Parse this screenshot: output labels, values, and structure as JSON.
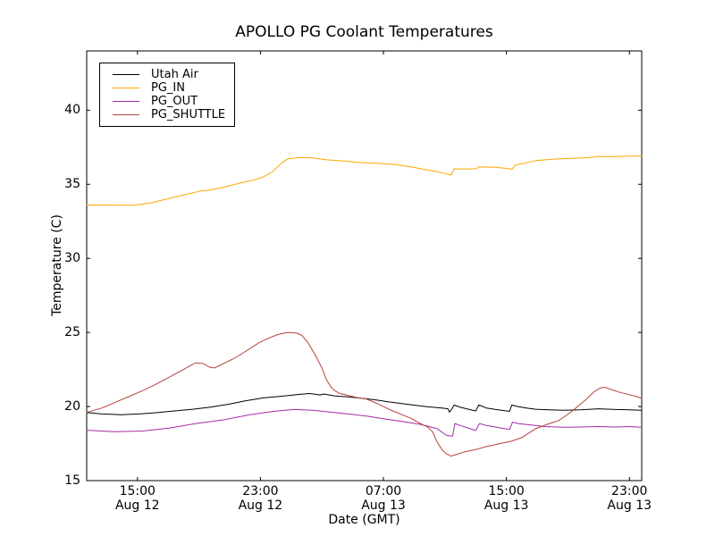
{
  "chart_data": {
    "type": "line",
    "title": "APOLLO PG Coolant Temperatures",
    "xlabel": "Date (GMT)",
    "ylabel": "Temperature (C)",
    "x_unit": "hours since Aug 12 00:00 GMT",
    "xlim": [
      11.7,
      47.8
    ],
    "ylim": [
      15,
      44
    ],
    "grid": false,
    "legend_position": "upper left",
    "yticks": [
      15,
      20,
      25,
      30,
      35,
      40
    ],
    "xticks": [
      {
        "t": 15,
        "time": "15:00",
        "date": "Aug 12"
      },
      {
        "t": 23,
        "time": "23:00",
        "date": "Aug 12"
      },
      {
        "t": 31,
        "time": "07:00",
        "date": "Aug 13"
      },
      {
        "t": 39,
        "time": "15:00",
        "date": "Aug 13"
      },
      {
        "t": 47,
        "time": "23:00",
        "date": "Aug 13"
      }
    ],
    "series": [
      {
        "name": "Utah Air",
        "color": "#000000",
        "points": [
          [
            11.7,
            19.6
          ],
          [
            12.7,
            19.5
          ],
          [
            13.9,
            19.45
          ],
          [
            15.1,
            19.5
          ],
          [
            16.2,
            19.58
          ],
          [
            17.4,
            19.7
          ],
          [
            18.6,
            19.82
          ],
          [
            19.7,
            19.95
          ],
          [
            20.9,
            20.15
          ],
          [
            22.0,
            20.38
          ],
          [
            23.2,
            20.58
          ],
          [
            24.4,
            20.7
          ],
          [
            25.5,
            20.82
          ],
          [
            26.2,
            20.88
          ],
          [
            26.9,
            20.78
          ],
          [
            27.1,
            20.85
          ],
          [
            27.8,
            20.72
          ],
          [
            28.7,
            20.65
          ],
          [
            29.6,
            20.55
          ],
          [
            30.5,
            20.45
          ],
          [
            31.3,
            20.32
          ],
          [
            32.2,
            20.2
          ],
          [
            33.1,
            20.08
          ],
          [
            33.9,
            19.98
          ],
          [
            34.8,
            19.9
          ],
          [
            35.2,
            19.85
          ],
          [
            35.3,
            19.62
          ],
          [
            35.45,
            19.85
          ],
          [
            35.6,
            20.1
          ],
          [
            36.0,
            19.95
          ],
          [
            36.6,
            19.8
          ],
          [
            37.0,
            19.7
          ],
          [
            37.2,
            20.1
          ],
          [
            37.7,
            19.9
          ],
          [
            38.3,
            19.8
          ],
          [
            38.9,
            19.72
          ],
          [
            39.2,
            19.68
          ],
          [
            39.35,
            20.1
          ],
          [
            39.75,
            20.0
          ],
          [
            40.3,
            19.9
          ],
          [
            40.9,
            19.82
          ],
          [
            41.8,
            19.78
          ],
          [
            42.7,
            19.75
          ],
          [
            43.8,
            19.78
          ],
          [
            45.0,
            19.85
          ],
          [
            46.1,
            19.8
          ],
          [
            47.0,
            19.78
          ],
          [
            47.8,
            19.75
          ]
        ]
      },
      {
        "name": "PG_IN",
        "color": "#ffa500",
        "points": [
          [
            11.7,
            33.6
          ],
          [
            14.8,
            33.58
          ],
          [
            15.9,
            33.75
          ],
          [
            17.7,
            34.2
          ],
          [
            18.6,
            34.42
          ],
          [
            19.1,
            34.55
          ],
          [
            19.7,
            34.6
          ],
          [
            20.6,
            34.8
          ],
          [
            21.0,
            34.9
          ],
          [
            21.7,
            35.08
          ],
          [
            22.6,
            35.3
          ],
          [
            23.2,
            35.5
          ],
          [
            23.8,
            35.85
          ],
          [
            24.4,
            36.45
          ],
          [
            24.8,
            36.72
          ],
          [
            25.5,
            36.8
          ],
          [
            26.4,
            36.78
          ],
          [
            27.3,
            36.65
          ],
          [
            28.1,
            36.6
          ],
          [
            29.3,
            36.48
          ],
          [
            30.5,
            36.42
          ],
          [
            31.6,
            36.35
          ],
          [
            32.8,
            36.18
          ],
          [
            33.7,
            36.0
          ],
          [
            34.5,
            35.85
          ],
          [
            35.1,
            35.7
          ],
          [
            35.4,
            35.62
          ],
          [
            35.6,
            36.05
          ],
          [
            36.3,
            36.03
          ],
          [
            37.05,
            36.05
          ],
          [
            37.2,
            36.18
          ],
          [
            38.3,
            36.15
          ],
          [
            39.2,
            36.05
          ],
          [
            39.35,
            36.0
          ],
          [
            39.6,
            36.3
          ],
          [
            40.3,
            36.45
          ],
          [
            40.9,
            36.6
          ],
          [
            42.1,
            36.7
          ],
          [
            43.2,
            36.75
          ],
          [
            44.4,
            36.8
          ],
          [
            45.0,
            36.88
          ],
          [
            46.1,
            36.87
          ],
          [
            47.0,
            36.9
          ],
          [
            47.8,
            36.9
          ]
        ]
      },
      {
        "name": "PG_OUT",
        "color": "#a62ca6",
        "points": [
          [
            11.7,
            18.4
          ],
          [
            13.6,
            18.3
          ],
          [
            15.4,
            18.35
          ],
          [
            17.1,
            18.55
          ],
          [
            18.8,
            18.85
          ],
          [
            20.6,
            19.1
          ],
          [
            22.3,
            19.45
          ],
          [
            23.9,
            19.68
          ],
          [
            25.2,
            19.8
          ],
          [
            26.4,
            19.75
          ],
          [
            27.6,
            19.62
          ],
          [
            28.7,
            19.5
          ],
          [
            29.9,
            19.35
          ],
          [
            31.0,
            19.18
          ],
          [
            32.2,
            19.0
          ],
          [
            33.4,
            18.8
          ],
          [
            34.5,
            18.5
          ],
          [
            34.9,
            18.2
          ],
          [
            35.1,
            18.05
          ],
          [
            35.5,
            18.0
          ],
          [
            35.65,
            18.85
          ],
          [
            36.0,
            18.72
          ],
          [
            36.6,
            18.52
          ],
          [
            37.0,
            18.38
          ],
          [
            37.25,
            18.85
          ],
          [
            37.7,
            18.72
          ],
          [
            38.3,
            18.62
          ],
          [
            38.9,
            18.5
          ],
          [
            39.2,
            18.45
          ],
          [
            39.4,
            18.95
          ],
          [
            39.75,
            18.85
          ],
          [
            40.6,
            18.75
          ],
          [
            41.5,
            18.65
          ],
          [
            42.7,
            18.6
          ],
          [
            43.8,
            18.62
          ],
          [
            45.0,
            18.65
          ],
          [
            46.1,
            18.62
          ],
          [
            47.0,
            18.65
          ],
          [
            47.8,
            18.6
          ]
        ]
      },
      {
        "name": "PG_SHUTTLE",
        "color": "#b5423c",
        "points": [
          [
            11.7,
            19.6
          ],
          [
            12.7,
            19.9
          ],
          [
            13.6,
            20.3
          ],
          [
            14.5,
            20.7
          ],
          [
            15.4,
            21.1
          ],
          [
            16.2,
            21.5
          ],
          [
            17.1,
            22.0
          ],
          [
            18.0,
            22.5
          ],
          [
            18.6,
            22.85
          ],
          [
            18.8,
            22.95
          ],
          [
            19.3,
            22.9
          ],
          [
            19.7,
            22.65
          ],
          [
            20.0,
            22.6
          ],
          [
            20.6,
            22.9
          ],
          [
            21.2,
            23.2
          ],
          [
            21.7,
            23.5
          ],
          [
            22.3,
            23.9
          ],
          [
            22.9,
            24.3
          ],
          [
            23.5,
            24.6
          ],
          [
            24.1,
            24.85
          ],
          [
            24.5,
            24.95
          ],
          [
            24.9,
            25.0
          ],
          [
            25.4,
            24.95
          ],
          [
            25.7,
            24.8
          ],
          [
            26.1,
            24.3
          ],
          [
            26.5,
            23.6
          ],
          [
            27.0,
            22.6
          ],
          [
            27.3,
            21.8
          ],
          [
            27.6,
            21.3
          ],
          [
            27.8,
            21.1
          ],
          [
            28.1,
            20.9
          ],
          [
            28.7,
            20.75
          ],
          [
            29.3,
            20.6
          ],
          [
            29.9,
            20.5
          ],
          [
            30.5,
            20.25
          ],
          [
            31.0,
            20.0
          ],
          [
            31.6,
            19.7
          ],
          [
            32.2,
            19.45
          ],
          [
            32.8,
            19.2
          ],
          [
            33.4,
            18.85
          ],
          [
            33.9,
            18.6
          ],
          [
            34.2,
            18.3
          ],
          [
            34.5,
            17.6
          ],
          [
            34.8,
            17.1
          ],
          [
            35.1,
            16.8
          ],
          [
            35.4,
            16.65
          ],
          [
            35.7,
            16.75
          ],
          [
            36.3,
            16.95
          ],
          [
            37.0,
            17.1
          ],
          [
            37.7,
            17.3
          ],
          [
            38.6,
            17.5
          ],
          [
            39.3,
            17.65
          ],
          [
            40.0,
            17.9
          ],
          [
            40.9,
            18.5
          ],
          [
            41.8,
            18.85
          ],
          [
            42.4,
            19.05
          ],
          [
            42.9,
            19.4
          ],
          [
            43.4,
            19.8
          ],
          [
            44.1,
            20.4
          ],
          [
            44.7,
            21.0
          ],
          [
            45.1,
            21.25
          ],
          [
            45.4,
            21.3
          ],
          [
            45.8,
            21.15
          ],
          [
            46.4,
            20.95
          ],
          [
            47.0,
            20.8
          ],
          [
            47.4,
            20.7
          ],
          [
            47.8,
            20.55
          ]
        ]
      }
    ]
  }
}
